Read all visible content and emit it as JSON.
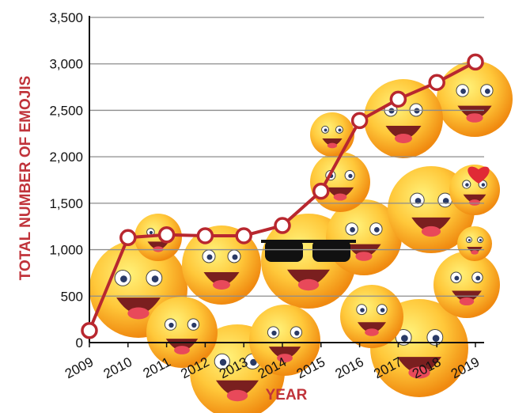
{
  "chart_data": {
    "type": "line",
    "title": "",
    "xlabel": "YEAR",
    "ylabel": "TOTAL NUMBER OF EMOJIS",
    "x": [
      "2009",
      "2010",
      "2011",
      "2012",
      "2013",
      "2014",
      "2015",
      "2016",
      "2017",
      "2018",
      "2019"
    ],
    "series": [
      {
        "values": [
          130,
          1130,
          1160,
          1150,
          1150,
          1260,
          1630,
          2390,
          2620,
          2800,
          3020
        ]
      }
    ],
    "ylim": [
      0,
      3500
    ],
    "yticks": [
      "0",
      "500",
      "1,000",
      "1,500",
      "2,000",
      "2,500",
      "3,000",
      "3,500"
    ],
    "grid": true,
    "colors": {
      "line": "#b8272f",
      "marker_fill": "#ffffff",
      "axis_title": "#c0333a",
      "grid": "#8c8c8c",
      "emoji": "#ffc83a"
    },
    "background_decoration": "emoji-faces"
  }
}
